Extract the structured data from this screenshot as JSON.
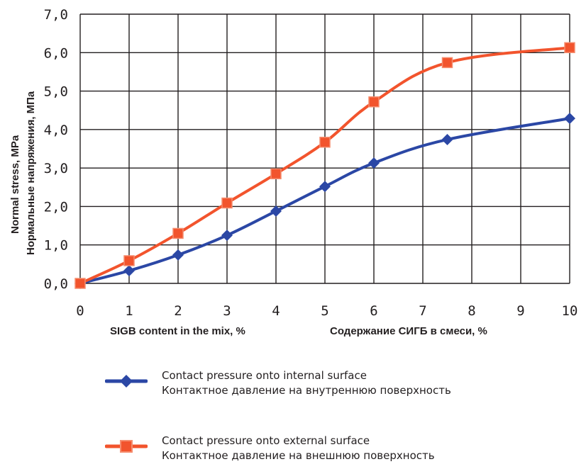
{
  "chart_data": {
    "type": "line",
    "xlabel_en": "SIGB content in the mix, %",
    "xlabel_ru": "Содержание СИГБ в смеси, %",
    "ylabel_en": "Normal stress, MPa",
    "ylabel_ru": "Нормальные напряжения, МПа",
    "xlim": [
      0,
      10
    ],
    "ylim": [
      0,
      7
    ],
    "x_ticks": [
      "0",
      "1",
      "2",
      "3",
      "4",
      "5",
      "6",
      "7",
      "8",
      "9",
      "10"
    ],
    "y_ticks": [
      "0,0",
      "1,0",
      "2,0",
      "3,0",
      "4,0",
      "5,0",
      "6,0",
      "7,0"
    ],
    "grid": true,
    "legend_position": "bottom",
    "series": [
      {
        "name_en": "Contact pressure onto internal surface",
        "name_ru": "Контактное давление на внутреннюю поверхность",
        "color": "#2b47a5",
        "marker": "diamond",
        "x": [
          0,
          1,
          2,
          3,
          4,
          5,
          6,
          7.5,
          10
        ],
        "y": [
          0.0,
          0.33,
          0.74,
          1.25,
          1.88,
          2.52,
          3.13,
          3.74,
          4.29
        ]
      },
      {
        "name_en": "Contact pressure onto external surface",
        "name_ru": "Контактное давление на внешнюю поверхность",
        "color": "#f2542d",
        "marker": "square",
        "x": [
          0,
          1,
          2,
          3,
          4,
          5,
          6,
          7.5,
          10
        ],
        "y": [
          0.0,
          0.59,
          1.3,
          2.09,
          2.85,
          3.67,
          4.72,
          5.74,
          6.13
        ]
      }
    ]
  }
}
